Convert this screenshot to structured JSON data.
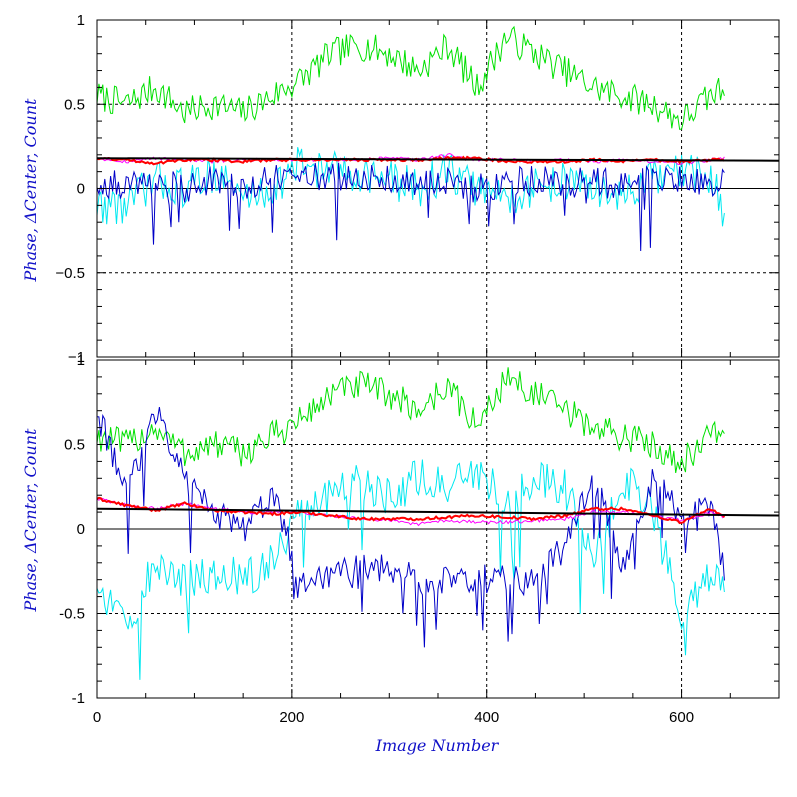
{
  "chart_data": [
    {
      "type": "line",
      "panel": "top",
      "ylabel": "Phase, ΔCenter, Count",
      "xlabel": "",
      "xlim": [
        0,
        700
      ],
      "ylim": [
        -1,
        1
      ],
      "x_ticks": [
        0,
        200,
        400,
        600
      ],
      "x_tick_labels": [
        "",
        "",
        "",
        ""
      ],
      "y_ticks": [
        -1,
        -0.5,
        0,
        0.5,
        1
      ],
      "y_tick_labels": [
        "−1",
        "−0.5",
        "0",
        "0.5",
        "1"
      ],
      "grid": "dashed at x=200,400,600 and y=±0.5",
      "series": [
        {
          "color": "#00e000",
          "x": [
            0,
            30,
            60,
            90,
            120,
            150,
            180,
            210,
            240,
            270,
            300,
            330,
            360,
            390,
            420,
            450,
            480,
            510,
            540,
            570,
            600,
            630,
            645
          ],
          "values": [
            0.55,
            0.5,
            0.6,
            0.45,
            0.5,
            0.45,
            0.55,
            0.65,
            0.8,
            0.85,
            0.8,
            0.7,
            0.85,
            0.6,
            0.9,
            0.8,
            0.7,
            0.6,
            0.55,
            0.5,
            0.4,
            0.55,
            0.6
          ]
        },
        {
          "color": "#00e8f0",
          "x": [
            0,
            30,
            60,
            90,
            120,
            150,
            180,
            210,
            240,
            270,
            300,
            330,
            360,
            390,
            420,
            450,
            480,
            510,
            540,
            570,
            600,
            630,
            645
          ],
          "values": [
            -0.1,
            -0.1,
            0.05,
            0.0,
            0.1,
            -0.05,
            0.0,
            0.15,
            0.1,
            0.1,
            0.05,
            0.0,
            0.1,
            0.0,
            -0.05,
            0.0,
            0.05,
            0.0,
            -0.05,
            0.05,
            0.1,
            0.05,
            -0.15
          ]
        },
        {
          "color": "#0000c8",
          "x": [
            0,
            30,
            60,
            90,
            120,
            150,
            180,
            210,
            240,
            270,
            300,
            330,
            360,
            390,
            420,
            450,
            480,
            510,
            540,
            570,
            600,
            630,
            645
          ],
          "values": [
            0.05,
            0.0,
            0.05,
            0.0,
            0.05,
            0.0,
            0.05,
            0.05,
            0.08,
            0.05,
            0.05,
            0.05,
            0.05,
            0.0,
            0.03,
            0.05,
            0.02,
            0.05,
            0.0,
            0.05,
            0.05,
            0.02,
            0.1
          ]
        },
        {
          "color": "#ff00ff",
          "x": [
            0,
            30,
            60,
            90,
            120,
            150,
            180,
            210,
            240,
            270,
            300,
            330,
            360,
            390,
            420,
            450,
            480,
            510,
            540,
            570,
            600,
            630,
            645
          ],
          "values": [
            0.18,
            0.16,
            0.18,
            0.17,
            0.16,
            0.17,
            0.17,
            0.17,
            0.17,
            0.17,
            0.18,
            0.17,
            0.2,
            0.17,
            0.17,
            0.16,
            0.17,
            0.16,
            0.17,
            0.16,
            0.15,
            0.17,
            0.18
          ]
        },
        {
          "color": "#ff0000",
          "x": [
            0,
            30,
            60,
            90,
            120,
            150,
            180,
            210,
            240,
            270,
            300,
            330,
            360,
            390,
            420,
            450,
            480,
            510,
            540,
            570,
            600,
            630,
            645
          ],
          "values": [
            0.18,
            0.17,
            0.15,
            0.17,
            0.17,
            0.16,
            0.17,
            0.17,
            0.17,
            0.17,
            0.17,
            0.17,
            0.18,
            0.18,
            0.16,
            0.16,
            0.16,
            0.17,
            0.16,
            0.17,
            0.16,
            0.17,
            0.17
          ]
        },
        {
          "color": "#000000",
          "x": [
            0,
            700
          ],
          "values": [
            0.18,
            0.165
          ]
        }
      ]
    },
    {
      "type": "line",
      "panel": "bottom",
      "ylabel": "Phase, ΔCenter, Count",
      "xlabel": "Image Number",
      "xlim": [
        0,
        700
      ],
      "ylim": [
        -1,
        1
      ],
      "x_ticks": [
        0,
        200,
        400,
        600
      ],
      "x_tick_labels": [
        "0",
        "200",
        "400",
        "600"
      ],
      "y_ticks": [
        -1,
        -0.5,
        0,
        0.5,
        1
      ],
      "y_tick_labels": [
        "-1",
        "-0.5",
        "0",
        "0.5",
        "1"
      ],
      "grid": "dashed at x=200,400,600 and y=±0.5",
      "series": [
        {
          "color": "#00e000",
          "x": [
            0,
            30,
            60,
            90,
            120,
            150,
            180,
            210,
            240,
            270,
            300,
            330,
            360,
            390,
            420,
            450,
            480,
            510,
            540,
            570,
            600,
            630,
            645
          ],
          "values": [
            0.55,
            0.5,
            0.6,
            0.45,
            0.5,
            0.45,
            0.55,
            0.65,
            0.8,
            0.85,
            0.8,
            0.7,
            0.85,
            0.6,
            0.9,
            0.8,
            0.7,
            0.6,
            0.55,
            0.5,
            0.4,
            0.55,
            0.6
          ]
        },
        {
          "color": "#00e8f0",
          "x": [
            0,
            30,
            60,
            90,
            120,
            150,
            180,
            210,
            240,
            270,
            300,
            330,
            360,
            390,
            420,
            450,
            480,
            510,
            540,
            570,
            600,
            630,
            645
          ],
          "values": [
            -0.3,
            -0.6,
            -0.2,
            -0.3,
            -0.25,
            -0.3,
            -0.2,
            0.1,
            0.2,
            0.3,
            0.2,
            0.3,
            0.25,
            0.3,
            0.2,
            0.3,
            0.25,
            -0.2,
            0.3,
            0.1,
            -0.5,
            -0.3,
            -0.35
          ]
        },
        {
          "color": "#0000c8",
          "x": [
            0,
            30,
            60,
            90,
            120,
            150,
            180,
            210,
            240,
            270,
            300,
            330,
            360,
            390,
            420,
            450,
            480,
            510,
            540,
            570,
            600,
            630,
            645
          ],
          "values": [
            0.7,
            0.2,
            0.7,
            0.3,
            0.1,
            0.0,
            0.2,
            -0.3,
            -0.3,
            -0.2,
            -0.25,
            -0.3,
            -0.3,
            -0.3,
            -0.3,
            -0.3,
            -0.1,
            0.3,
            -0.2,
            0.3,
            0.1,
            0.1,
            -0.25
          ]
        },
        {
          "color": "#ff00ff",
          "x": [
            0,
            30,
            60,
            90,
            120,
            150,
            180,
            210,
            240,
            270,
            300,
            330,
            360,
            390,
            420,
            450,
            480,
            510,
            540,
            570,
            600,
            630,
            645
          ],
          "values": [
            0.18,
            0.14,
            0.12,
            0.15,
            0.12,
            0.1,
            0.1,
            0.1,
            0.08,
            0.06,
            0.05,
            0.03,
            0.05,
            0.04,
            0.04,
            0.05,
            0.06,
            0.1,
            0.1,
            0.08,
            0.05,
            0.1,
            0.07
          ]
        },
        {
          "color": "#ff0000",
          "x": [
            0,
            30,
            60,
            90,
            120,
            150,
            180,
            210,
            240,
            270,
            300,
            330,
            360,
            390,
            420,
            450,
            480,
            510,
            540,
            570,
            600,
            630,
            645
          ],
          "values": [
            0.18,
            0.14,
            0.11,
            0.15,
            0.11,
            0.1,
            0.09,
            0.1,
            0.08,
            0.06,
            0.06,
            0.06,
            0.07,
            0.08,
            0.07,
            0.06,
            0.08,
            0.12,
            0.12,
            0.08,
            0.04,
            0.12,
            0.07
          ]
        },
        {
          "color": "#000000",
          "x": [
            0,
            700
          ],
          "values": [
            0.12,
            0.08
          ]
        }
      ]
    }
  ]
}
